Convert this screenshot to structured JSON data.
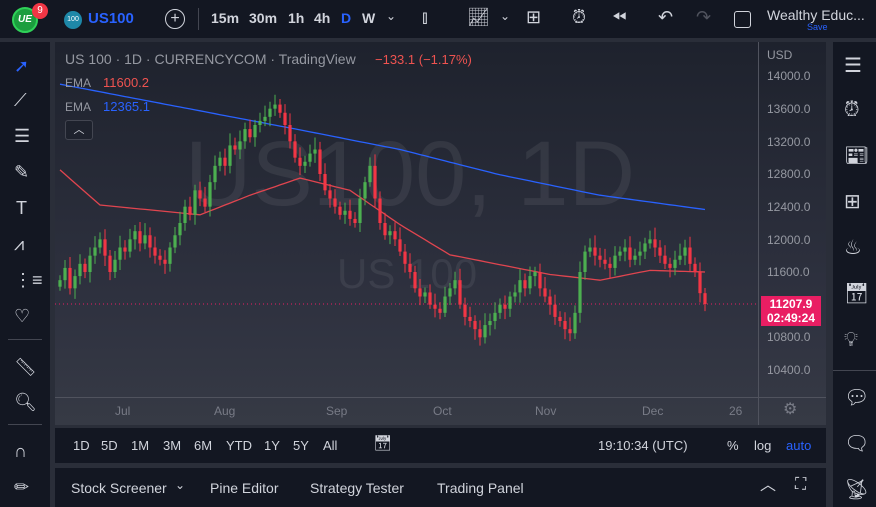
{
  "topbar": {
    "logo_badge": "9",
    "logo_text": "UE",
    "symbol_badge": "100",
    "symbol": "US100",
    "intervals": [
      "15m",
      "30m",
      "1h",
      "4h",
      "D",
      "W"
    ],
    "active_interval": "D",
    "account": "Wealthy Educ...",
    "save": "Save"
  },
  "legend": {
    "title": "US 100 · 1D · CURRENCYCOM · TradingView",
    "change": "−133.1 (−1.17%)",
    "ema1_label": "EMA",
    "ema1_value": "11600.2",
    "ema2_label": "EMA",
    "ema2_value": "12365.1"
  },
  "watermark": {
    "main": "US100, 1D",
    "sub": "US 100"
  },
  "price_axis": {
    "currency": "USD",
    "ticks": [
      "14000.0",
      "13600.0",
      "13200.0",
      "12800.0",
      "12400.0",
      "12000.0",
      "11600.0",
      "10800.0",
      "10400.0"
    ],
    "last_price": "11207.9",
    "countdown": "02:49:24"
  },
  "time_axis": {
    "labels": [
      "Jul",
      "Aug",
      "Sep",
      "Oct",
      "Nov",
      "Dec",
      "26"
    ]
  },
  "controls": {
    "ranges": [
      "1D",
      "5D",
      "1M",
      "3M",
      "6M",
      "YTD",
      "1Y",
      "5Y",
      "All"
    ],
    "clock": "19:10:34 (UTC)",
    "percent": "%",
    "log": "log",
    "auto": "auto"
  },
  "bottom_panel": {
    "tabs": [
      "Stock Screener",
      "Pine Editor",
      "Strategy Tester",
      "Trading Panel"
    ]
  },
  "colors": {
    "up": "#26a69a",
    "down": "#ef5350",
    "candle_up": "#4caf50",
    "candle_down": "#f23645",
    "ema_fast": "#e0454f",
    "ema_slow": "#2962ff",
    "accent": "#2962ff",
    "last_price_bg": "#e91e63"
  },
  "chart_data": {
    "type": "candlestick",
    "ylim": [
      10100,
      14300
    ],
    "closes": [
      11500,
      11650,
      11400,
      11550,
      11700,
      11600,
      11800,
      11900,
      12000,
      11800,
      11600,
      11750,
      11900,
      11850,
      12000,
      12100,
      11950,
      12050,
      11900,
      11800,
      11750,
      11700,
      11900,
      12050,
      12200,
      12400,
      12300,
      12600,
      12500,
      12400,
      12700,
      12900,
      13000,
      12900,
      13150,
      13100,
      13200,
      13350,
      13250,
      13400,
      13450,
      13500,
      13600,
      13650,
      13550,
      13400,
      13200,
      13000,
      12900,
      12950,
      13050,
      13100,
      12800,
      12600,
      12500,
      12400,
      12300,
      12350,
      12250,
      12200,
      12500,
      12700,
      12900,
      12500,
      12200,
      12050,
      12100,
      12000,
      11850,
      11700,
      11600,
      11400,
      11300,
      11350,
      11200,
      11150,
      11100,
      11300,
      11400,
      11500,
      11200,
      11050,
      11000,
      10900,
      10800,
      10950,
      11000,
      11100,
      11200,
      11150,
      11300,
      11350,
      11500,
      11400,
      11550,
      11600,
      11400,
      11300,
      11200,
      11050,
      11000,
      10900,
      10850,
      11100,
      11600,
      11850,
      11900,
      11800,
      11750,
      11700,
      11650,
      11800,
      11850,
      11900,
      11750,
      11800,
      11850,
      11950,
      12000,
      11900,
      11800,
      11700,
      11650,
      11750,
      11800,
      11900,
      11700,
      11600,
      11341,
      11207.9
    ],
    "ema_fast": [
      [
        0,
        12850
      ],
      [
        8,
        12420
      ],
      [
        28,
        12300
      ],
      [
        38,
        12540
      ],
      [
        48,
        12750
      ],
      [
        58,
        12600
      ],
      [
        68,
        12180
      ],
      [
        78,
        11810
      ],
      [
        88,
        11690
      ],
      [
        98,
        11570
      ],
      [
        108,
        11500
      ],
      [
        118,
        11620
      ],
      [
        129,
        11600.2
      ]
    ],
    "ema_slow": [
      [
        0,
        13900
      ],
      [
        48,
        13340
      ],
      [
        68,
        13100
      ],
      [
        88,
        12790
      ],
      [
        108,
        12540
      ],
      [
        129,
        12365.1
      ]
    ]
  }
}
